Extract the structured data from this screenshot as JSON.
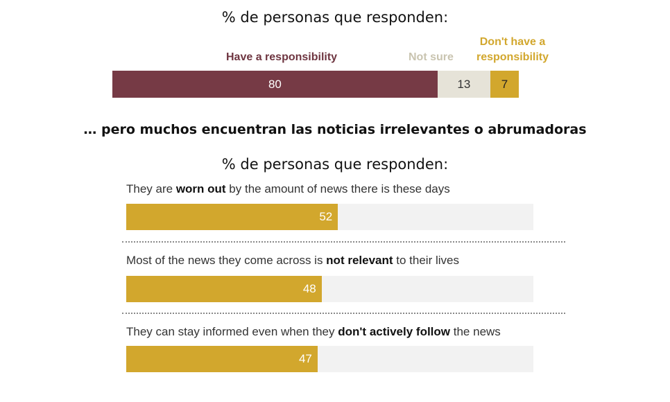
{
  "top": {
    "subtitle": "% de personas que responden:",
    "legend": {
      "have": "Have a responsibility",
      "notsure": "Not sure",
      "donthave_line1": "Don't have a",
      "donthave_line2": "responsibility"
    }
  },
  "heading": "… pero muchos encuentran las noticias  irrelevantes o abrumadoras",
  "bottom": {
    "subtitle": "% de personas que responden:",
    "q1": {
      "pre": "They are ",
      "bold": "worn out",
      "post": " by the amount of news there is these days",
      "value": 52
    },
    "q2": {
      "pre": "Most of the news they come across is ",
      "bold": "not relevant",
      "post": " to their lives",
      "value": 48
    },
    "q3": {
      "pre": "They can stay informed even when they ",
      "bold": "don't actively follow",
      "post": " the news",
      "value": 47
    }
  },
  "chart_data": [
    {
      "type": "bar",
      "orientation": "horizontal-stacked",
      "series": [
        {
          "name": "Have a responsibility",
          "values": [
            80
          ]
        },
        {
          "name": "Not sure",
          "values": [
            13
          ]
        },
        {
          "name": "Don't have a responsibility",
          "values": [
            7
          ]
        }
      ],
      "colors": [
        "#763a45",
        "#e6e3d8",
        "#d2a72d"
      ],
      "title": "% de personas que responden:"
    },
    {
      "type": "bar",
      "orientation": "horizontal",
      "categories": [
        "They are worn out by the amount of news there is these days",
        "Most of the news they come across is not relevant to their lives",
        "They can stay informed even when they don't actively follow the news"
      ],
      "values": [
        52,
        48,
        47
      ],
      "xlim": [
        0,
        100
      ],
      "color": "#d2a72d",
      "title": "% de personas que responden:"
    }
  ]
}
